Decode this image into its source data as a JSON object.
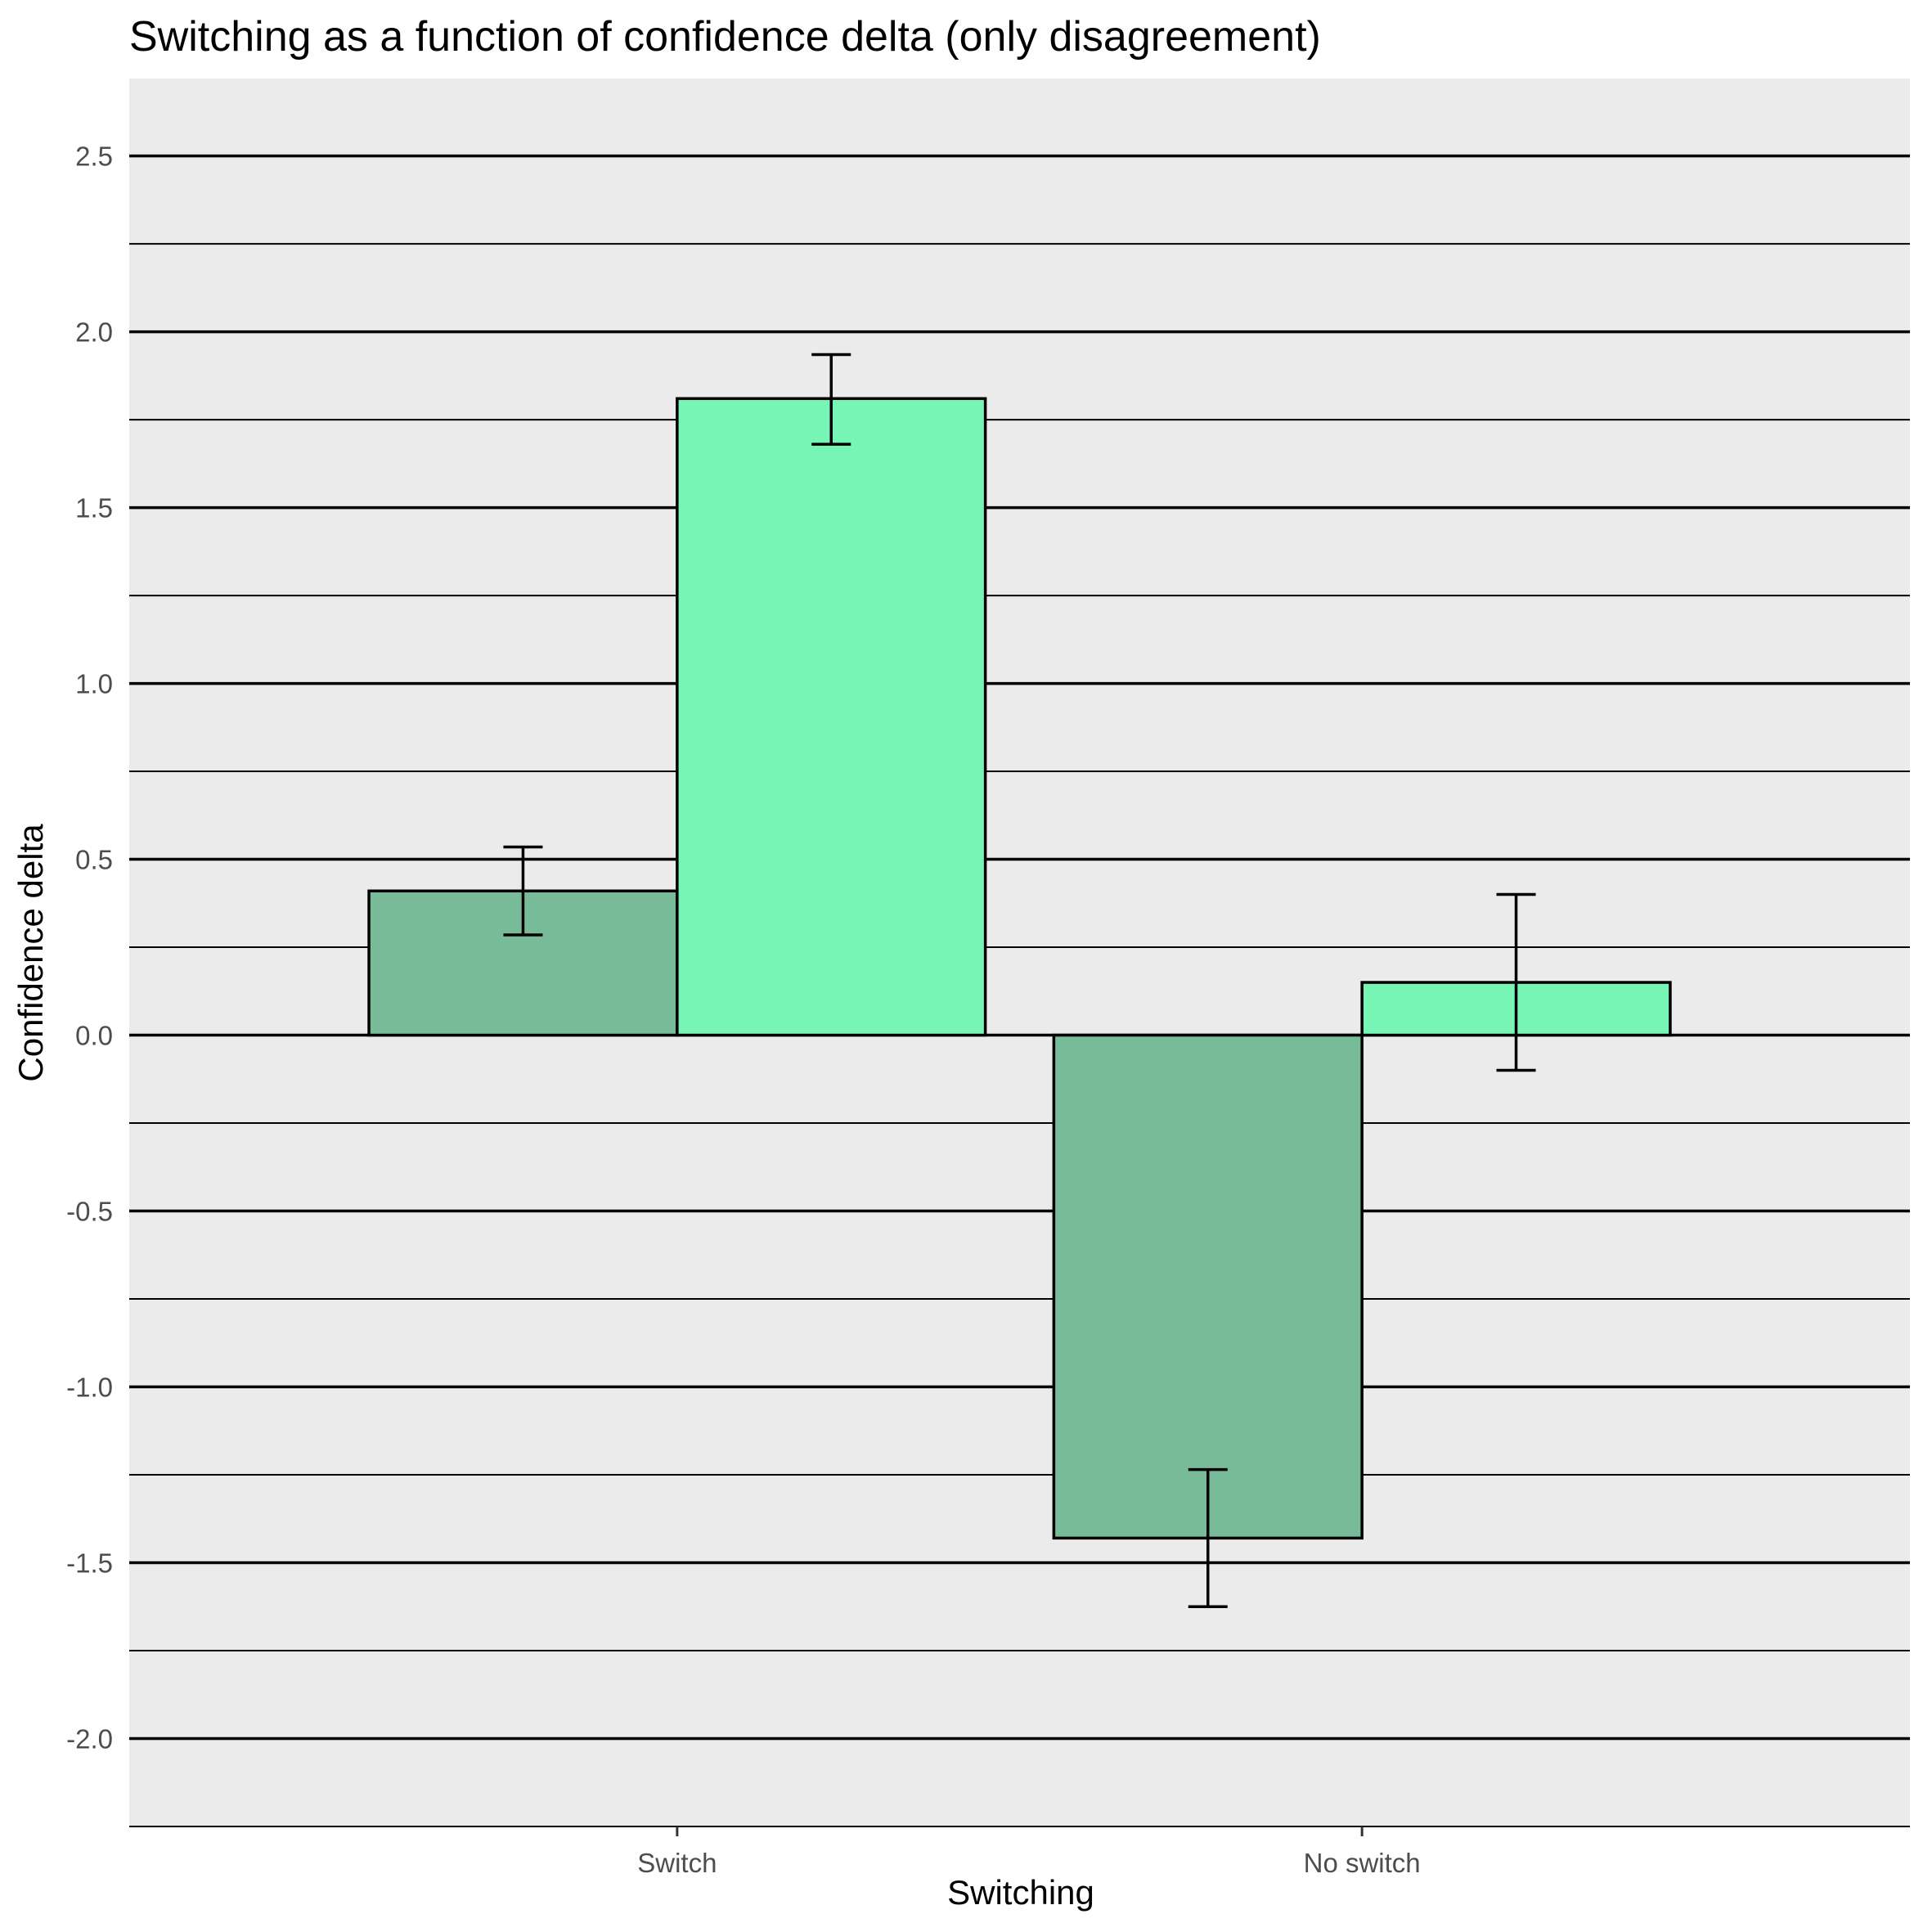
{
  "chart_data": {
    "type": "bar",
    "title": "Switching as a function of confidence delta (only disagreement)",
    "xlabel": "Switching",
    "ylabel": "Confidence delta",
    "categories": [
      "Switch",
      "No switch"
    ],
    "series": [
      {
        "values": [
          0.41,
          -1.43
        ],
        "error_low": [
          0.285,
          -1.625
        ],
        "error_high": [
          0.535,
          -1.235
        ],
        "color": "#78bb98"
      },
      {
        "values": [
          1.81,
          0.15
        ],
        "error_low": [
          1.68,
          -0.1
        ],
        "error_high": [
          1.935,
          0.4
        ],
        "color": "#76f5b5"
      }
    ],
    "ylim": [
      -2.25,
      2.72
    ],
    "yticks": [
      "2.5",
      "2.0",
      "1.5",
      "1.0",
      "0.5",
      "0.0",
      "-0.5",
      "-1.0",
      "-1.5",
      "-2.0"
    ],
    "grid": true,
    "legend": "none",
    "panel_background": "#ebebeb",
    "gridline_color": "#000000",
    "bar_outline_color": "#000000"
  }
}
